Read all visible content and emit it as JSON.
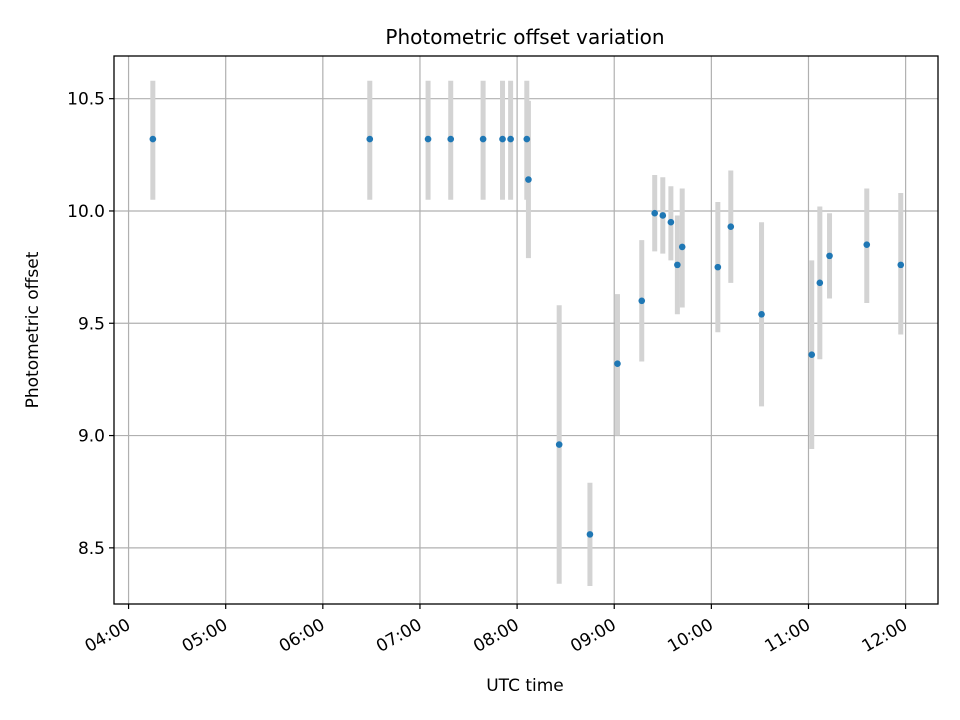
{
  "chart_data": {
    "type": "scatter",
    "title": "Photometric offset variation",
    "xlabel": "UTC time",
    "ylabel": "Photometric offset",
    "xlim": [
      "03:51",
      "12:20"
    ],
    "ylim": [
      8.25,
      10.69
    ],
    "x_ticks": [
      "04:00",
      "05:00",
      "06:00",
      "07:00",
      "08:00",
      "09:00",
      "10:00",
      "11:00",
      "12:00"
    ],
    "y_ticks": [
      "8.5",
      "9.0",
      "9.5",
      "10.0",
      "10.5"
    ],
    "grid": true,
    "colors": {
      "point": "#1f77b4",
      "errorbar": "#d3d3d3",
      "grid": "#b0b0b0"
    },
    "points": [
      {
        "x": "04:15",
        "y": 10.32,
        "err_low": 10.05,
        "err_high": 10.58
      },
      {
        "x": "06:29",
        "y": 10.32,
        "err_low": 10.05,
        "err_high": 10.58
      },
      {
        "x": "07:05",
        "y": 10.32,
        "err_low": 10.05,
        "err_high": 10.58
      },
      {
        "x": "07:19",
        "y": 10.32,
        "err_low": 10.05,
        "err_high": 10.58
      },
      {
        "x": "07:39",
        "y": 10.32,
        "err_low": 10.05,
        "err_high": 10.58
      },
      {
        "x": "07:51",
        "y": 10.32,
        "err_low": 10.05,
        "err_high": 10.58
      },
      {
        "x": "07:56",
        "y": 10.32,
        "err_low": 10.05,
        "err_high": 10.58
      },
      {
        "x": "08:06",
        "y": 10.32,
        "err_low": 10.05,
        "err_high": 10.58
      },
      {
        "x": "08:07",
        "y": 10.14,
        "err_low": 9.79,
        "err_high": 10.49
      },
      {
        "x": "08:26",
        "y": 8.96,
        "err_low": 8.34,
        "err_high": 9.58
      },
      {
        "x": "08:45",
        "y": 8.56,
        "err_low": 8.33,
        "err_high": 8.79
      },
      {
        "x": "09:02",
        "y": 9.32,
        "err_low": 9.0,
        "err_high": 9.63
      },
      {
        "x": "09:17",
        "y": 9.6,
        "err_low": 9.33,
        "err_high": 9.87
      },
      {
        "x": "09:25",
        "y": 9.99,
        "err_low": 9.82,
        "err_high": 10.16
      },
      {
        "x": "09:30",
        "y": 9.98,
        "err_low": 9.81,
        "err_high": 10.15
      },
      {
        "x": "09:35",
        "y": 9.95,
        "err_low": 9.78,
        "err_high": 10.11
      },
      {
        "x": "09:39",
        "y": 9.76,
        "err_low": 9.54,
        "err_high": 9.98
      },
      {
        "x": "09:42",
        "y": 9.84,
        "err_low": 9.57,
        "err_high": 10.1
      },
      {
        "x": "10:04",
        "y": 9.75,
        "err_low": 9.46,
        "err_high": 10.04
      },
      {
        "x": "10:12",
        "y": 9.93,
        "err_low": 9.68,
        "err_high": 10.18
      },
      {
        "x": "10:31",
        "y": 9.54,
        "err_low": 9.13,
        "err_high": 9.95
      },
      {
        "x": "11:02",
        "y": 9.36,
        "err_low": 8.94,
        "err_high": 9.78
      },
      {
        "x": "11:07",
        "y": 9.68,
        "err_low": 9.34,
        "err_high": 10.02
      },
      {
        "x": "11:13",
        "y": 9.8,
        "err_low": 9.61,
        "err_high": 9.99
      },
      {
        "x": "11:36",
        "y": 9.85,
        "err_low": 9.59,
        "err_high": 10.1
      },
      {
        "x": "11:57",
        "y": 9.76,
        "err_low": 9.45,
        "err_high": 10.08
      }
    ]
  }
}
